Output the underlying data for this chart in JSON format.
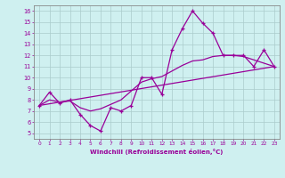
{
  "xlabel": "Windchill (Refroidissement éolien,°C)",
  "background_color": "#cff0f0",
  "grid_color": "#aacccc",
  "line_color": "#990099",
  "xlim": [
    -0.5,
    23.5
  ],
  "ylim": [
    4.5,
    16.5
  ],
  "xticks": [
    0,
    1,
    2,
    3,
    4,
    5,
    6,
    7,
    8,
    9,
    10,
    11,
    12,
    13,
    14,
    15,
    16,
    17,
    18,
    19,
    20,
    21,
    22,
    23
  ],
  "yticks": [
    5,
    6,
    7,
    8,
    9,
    10,
    11,
    12,
    13,
    14,
    15,
    16
  ],
  "series1": {
    "x": [
      0,
      1,
      2,
      3,
      4,
      5,
      6,
      7,
      8,
      9,
      10,
      11,
      12,
      13,
      14,
      15,
      16,
      17,
      18,
      19,
      20,
      21,
      22,
      23
    ],
    "y": [
      7.5,
      8.7,
      7.7,
      8.0,
      6.7,
      5.7,
      5.2,
      7.3,
      7.0,
      7.5,
      10.0,
      10.0,
      8.5,
      12.5,
      14.4,
      16.0,
      14.9,
      14.0,
      12.0,
      12.0,
      12.0,
      11.0,
      12.5,
      11.0
    ]
  },
  "series2": {
    "x": [
      0,
      1,
      2,
      3,
      4,
      5,
      6,
      7,
      8,
      9,
      10,
      11,
      12,
      13,
      14,
      15,
      16,
      17,
      18,
      19,
      20,
      21,
      22,
      23
    ],
    "y": [
      7.5,
      8.0,
      7.8,
      7.9,
      7.3,
      7.0,
      7.2,
      7.6,
      8.0,
      8.8,
      9.6,
      9.9,
      10.1,
      10.6,
      11.1,
      11.5,
      11.6,
      11.9,
      12.0,
      12.0,
      11.9,
      11.6,
      11.3,
      11.0
    ]
  },
  "series3": {
    "x": [
      0,
      23
    ],
    "y": [
      7.5,
      11.0
    ]
  }
}
